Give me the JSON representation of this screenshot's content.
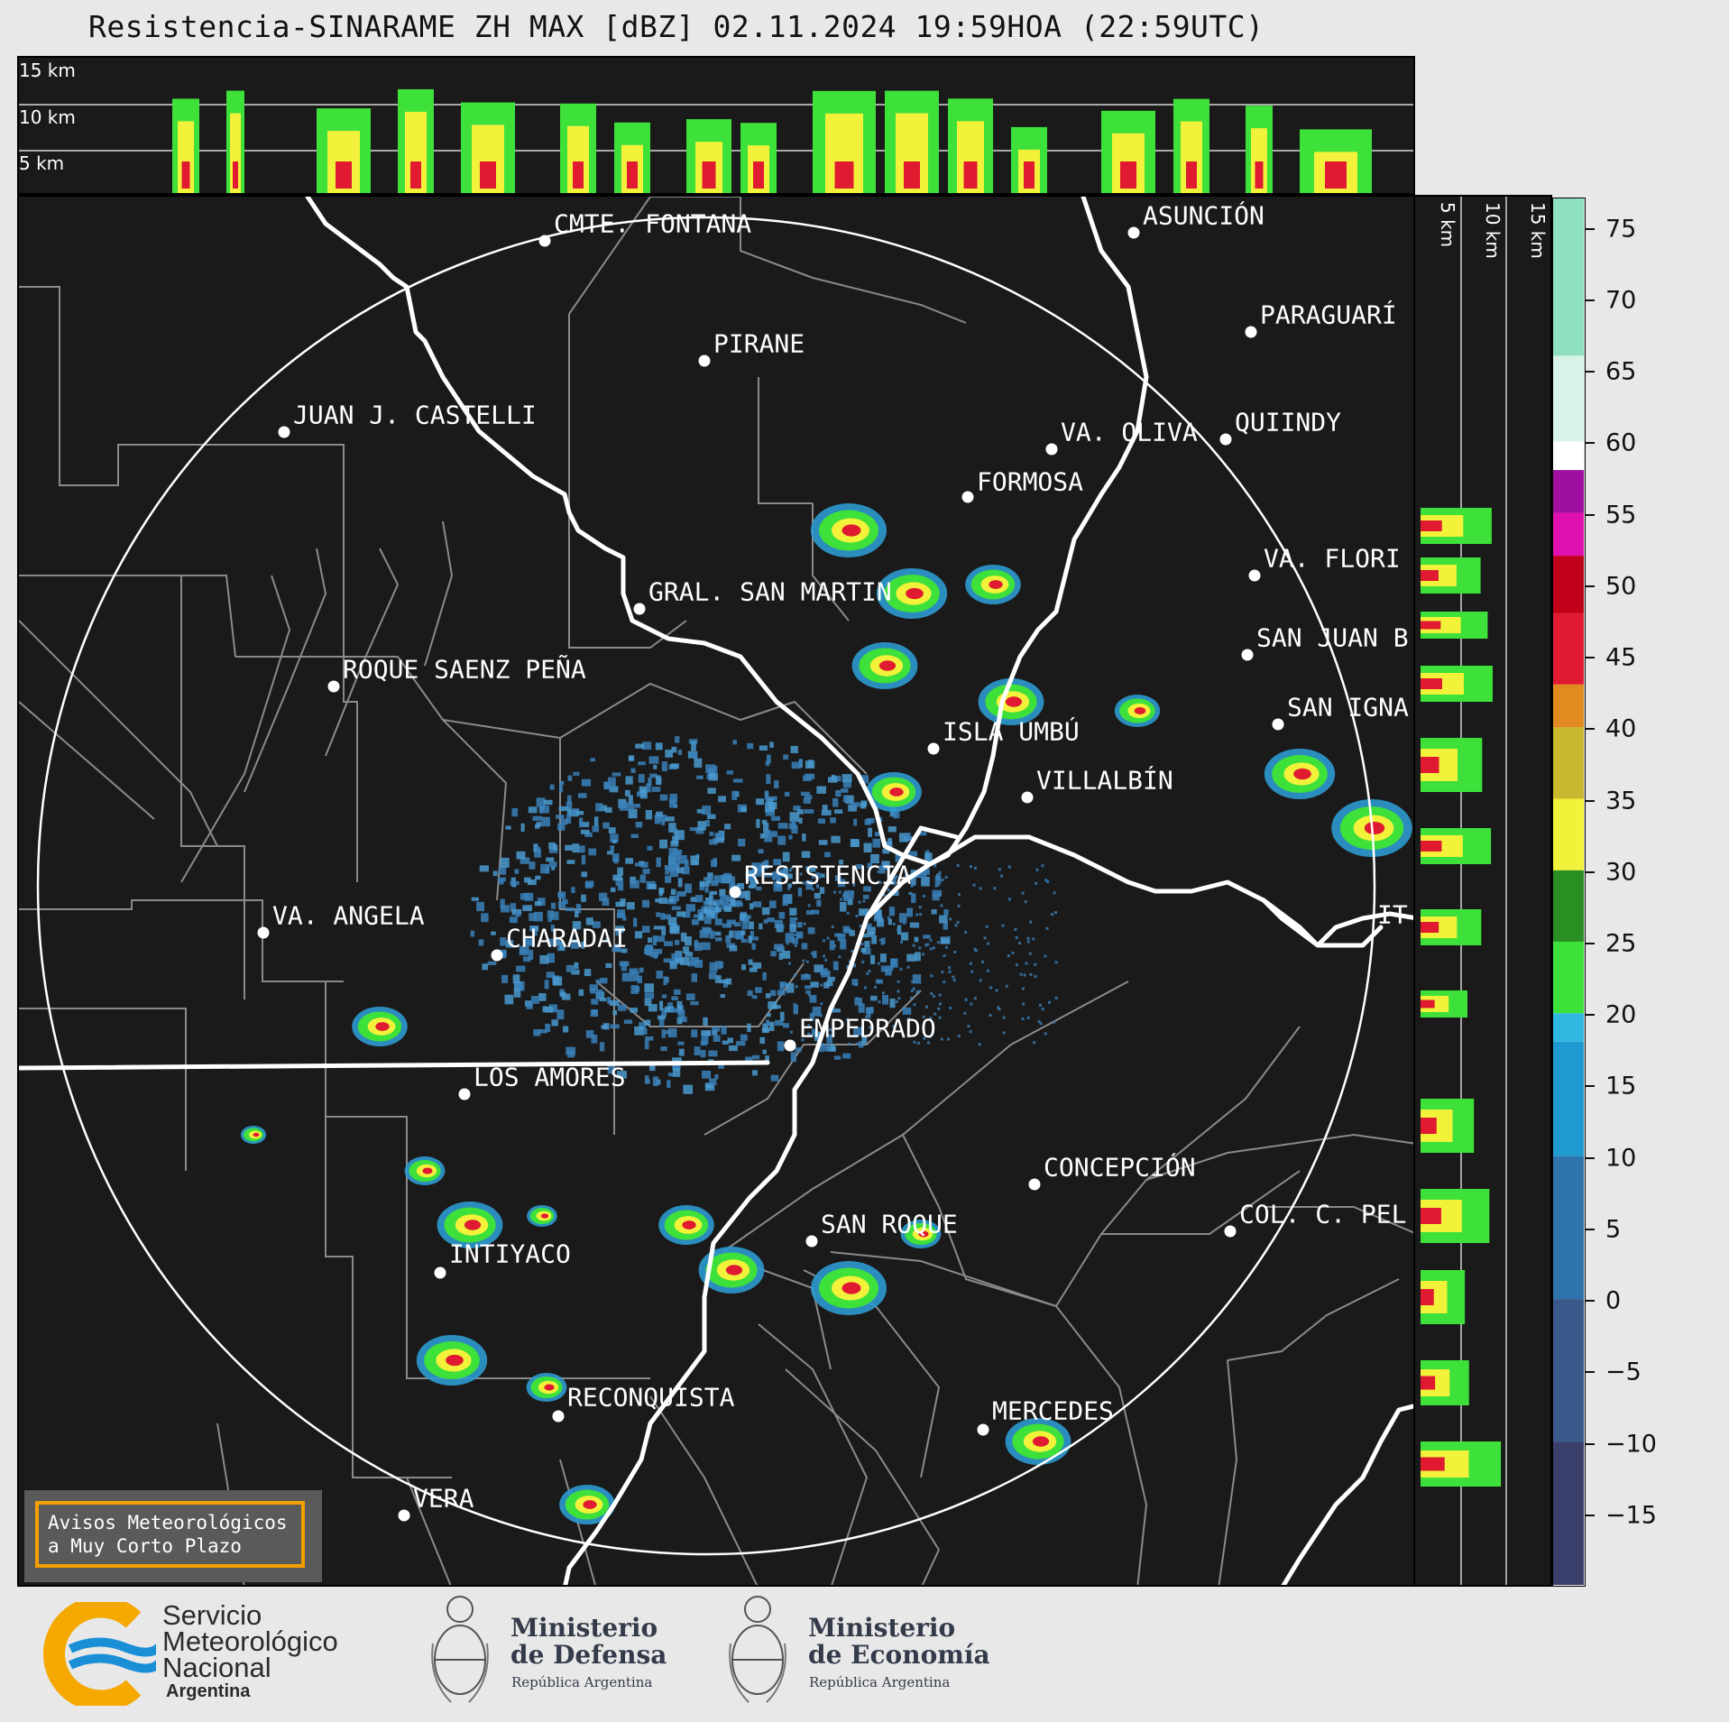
{
  "title": "Resistencia-SINARAME ZH MAX [dBZ] 02.11.2024 19:59HOA (22:59UTC)",
  "top_panel": {
    "height_labels": [
      "15 km",
      "10 km",
      "5 km"
    ]
  },
  "side_panel": {
    "height_labels": [
      "5 km",
      "10 km",
      "15 km"
    ]
  },
  "cities": [
    {
      "id": "cmte-fontana",
      "label": "CMTE. FONTANA"
    },
    {
      "id": "asuncion",
      "label": "ASUNCIÓN"
    },
    {
      "id": "pirane",
      "label": "PIRANE"
    },
    {
      "id": "paraguari",
      "label": "PARAGUARÍ"
    },
    {
      "id": "juan-j-castelli",
      "label": "JUAN J. CASTELLI"
    },
    {
      "id": "va-oliva",
      "label": "VA. OLIVA"
    },
    {
      "id": "quiindy",
      "label": "QUIINDY"
    },
    {
      "id": "formosa",
      "label": "FORMOSA"
    },
    {
      "id": "va-florida",
      "label": "VA. FLORI"
    },
    {
      "id": "gral-san-martin",
      "label": "GRAL. SAN MARTIN"
    },
    {
      "id": "san-juan-b",
      "label": "SAN JUAN B"
    },
    {
      "id": "roque-saenz-pena",
      "label": "ROQUE SAENZ PEÑA"
    },
    {
      "id": "san-ignacio",
      "label": "SAN IGNA"
    },
    {
      "id": "isla-umbu",
      "label": "ISLA UMBÚ"
    },
    {
      "id": "villalbin",
      "label": "VILLALBÍN"
    },
    {
      "id": "resistencia",
      "label": "RESISTENCIA"
    },
    {
      "id": "va-angela",
      "label": "VA. ANGELA"
    },
    {
      "id": "charadai",
      "label": "CHARADAI"
    },
    {
      "id": "ituzaingo",
      "label": "IT"
    },
    {
      "id": "empedrado",
      "label": "EMPEDRADO"
    },
    {
      "id": "los-amores",
      "label": "LOS AMORES"
    },
    {
      "id": "concepcion",
      "label": "CONCEPCIÓN"
    },
    {
      "id": "san-roque",
      "label": "SAN ROQUE"
    },
    {
      "id": "col-c-pellegrini",
      "label": "COL. C. PEL"
    },
    {
      "id": "intiyaco",
      "label": "INTIYACO"
    },
    {
      "id": "reconquista",
      "label": "RECONQUISTA"
    },
    {
      "id": "mercedes",
      "label": "MERCEDES"
    },
    {
      "id": "vera",
      "label": "VERA"
    }
  ],
  "colorbar": {
    "unit": "dBZ",
    "min": -20,
    "max": 77,
    "ticks": [
      "75",
      "70",
      "65",
      "60",
      "55",
      "50",
      "45",
      "40",
      "35",
      "30",
      "25",
      "20",
      "15",
      "10",
      "5",
      "0",
      "−5",
      "−10",
      "−15"
    ],
    "bands": [
      {
        "from": -20,
        "to": -10,
        "color": "#3a3f6b"
      },
      {
        "from": -10,
        "to": 0,
        "color": "#3a5a8c"
      },
      {
        "from": 0,
        "to": 10,
        "color": "#2e74ad"
      },
      {
        "from": 10,
        "to": 18,
        "color": "#1f9ad0"
      },
      {
        "from": 18,
        "to": 20,
        "color": "#30b8e0"
      },
      {
        "from": 20,
        "to": 25,
        "color": "#3ee03a"
      },
      {
        "from": 25,
        "to": 30,
        "color": "#2a8f22"
      },
      {
        "from": 30,
        "to": 35,
        "color": "#f2f23a"
      },
      {
        "from": 35,
        "to": 40,
        "color": "#c8b830"
      },
      {
        "from": 40,
        "to": 43,
        "color": "#e08a20"
      },
      {
        "from": 43,
        "to": 48,
        "color": "#e01a30"
      },
      {
        "from": 48,
        "to": 52,
        "color": "#c00018"
      },
      {
        "from": 52,
        "to": 55,
        "color": "#e010b0"
      },
      {
        "from": 55,
        "to": 58,
        "color": "#a010a0"
      },
      {
        "from": 58,
        "to": 60,
        "color": "#ffffff"
      },
      {
        "from": 60,
        "to": 66,
        "color": "#d8f4e8"
      },
      {
        "from": 66,
        "to": 77,
        "color": "#8ee0c0"
      }
    ]
  },
  "warning_box": {
    "line1": "Avisos Meteorológicos",
    "line2": "a Muy Corto Plazo"
  },
  "logos": {
    "smn": {
      "line1": "Servicio",
      "line2": "Meteorológico",
      "line3": "Nacional",
      "line4": "Argentina"
    },
    "defensa": {
      "line1": "Ministerio",
      "line2": "de Defensa",
      "line3": "República Argentina"
    },
    "economia": {
      "line1": "Ministerio",
      "line2": "de Economía",
      "line3": "República Argentina"
    }
  },
  "colors": {
    "map_bg": "#1a1a1a",
    "accent_warning": "#f5a000",
    "smn_blue": "#1b8fd6",
    "smn_orange": "#f5a800"
  }
}
